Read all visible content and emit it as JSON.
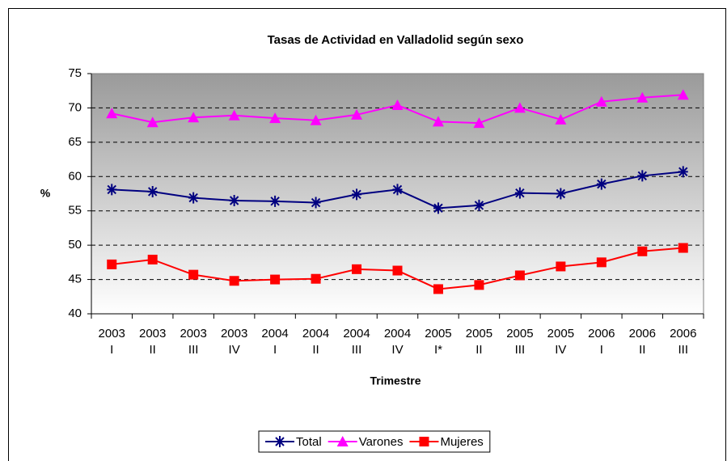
{
  "chart_data": {
    "type": "line",
    "title": "Tasas de Actividad en Valladolid según sexo",
    "y_label": "%",
    "x_label": "Trimestre",
    "categories": [
      [
        "2003",
        "I"
      ],
      [
        "2003",
        "II"
      ],
      [
        "2003",
        "III"
      ],
      [
        "2003",
        "IV"
      ],
      [
        "2004",
        "I"
      ],
      [
        "2004",
        "II"
      ],
      [
        "2004",
        "III"
      ],
      [
        "2004",
        "IV"
      ],
      [
        "2005",
        "I*"
      ],
      [
        "2005",
        "II"
      ],
      [
        "2005",
        "III"
      ],
      [
        "2005",
        "IV"
      ],
      [
        "2006",
        "I"
      ],
      [
        "2006",
        "II"
      ],
      [
        "2006",
        "III"
      ]
    ],
    "series": [
      {
        "name": "Total",
        "color": "#000080",
        "marker": "star",
        "values": [
          58.1,
          57.8,
          56.9,
          56.5,
          56.4,
          56.2,
          57.4,
          58.1,
          55.4,
          55.8,
          57.6,
          57.5,
          58.9,
          60.1,
          60.7
        ]
      },
      {
        "name": "Varones",
        "color": "#ff00ff",
        "marker": "triangle",
        "values": [
          69.2,
          67.9,
          68.6,
          68.9,
          68.5,
          68.2,
          69.0,
          70.4,
          68.0,
          67.8,
          70.0,
          68.3,
          70.9,
          71.5,
          71.9
        ]
      },
      {
        "name": "Mujeres",
        "color": "#ff0000",
        "marker": "square",
        "values": [
          47.2,
          47.9,
          45.7,
          44.8,
          45.0,
          45.1,
          46.5,
          46.3,
          43.6,
          44.2,
          45.6,
          46.9,
          47.5,
          49.1,
          49.6
        ]
      }
    ],
    "ylim": [
      40,
      75
    ],
    "yticks": [
      40,
      45,
      50,
      55,
      60,
      65,
      70,
      75
    ],
    "grid": true,
    "legend": "bottom"
  }
}
